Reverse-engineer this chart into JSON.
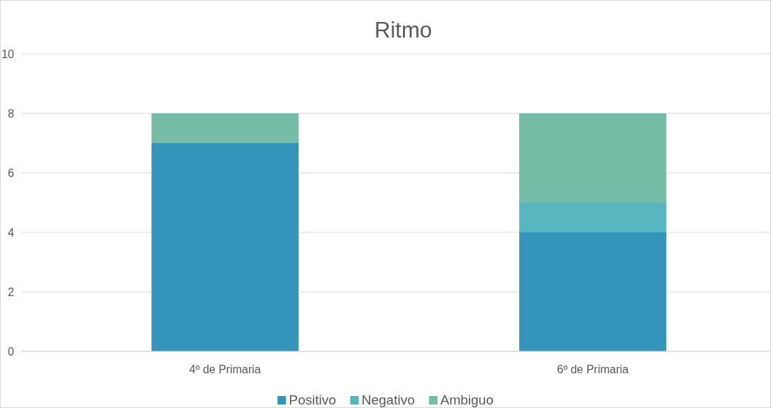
{
  "chart_data": {
    "type": "bar",
    "title": "Ritmo",
    "stacked": true,
    "categories": [
      "4º de Primaria",
      "6º de Primaria"
    ],
    "series": [
      {
        "name": "Positivo",
        "color": "#3494ba",
        "values": [
          7,
          4
        ]
      },
      {
        "name": "Negativo",
        "color": "#58b6c0",
        "values": [
          0,
          1
        ]
      },
      {
        "name": "Ambiguo",
        "color": "#75bda7",
        "values": [
          1,
          3
        ]
      }
    ],
    "ylim": [
      0,
      10
    ],
    "yticks": [
      0,
      2,
      4,
      6,
      8,
      10
    ],
    "grid": "y",
    "legend": "bottom"
  }
}
